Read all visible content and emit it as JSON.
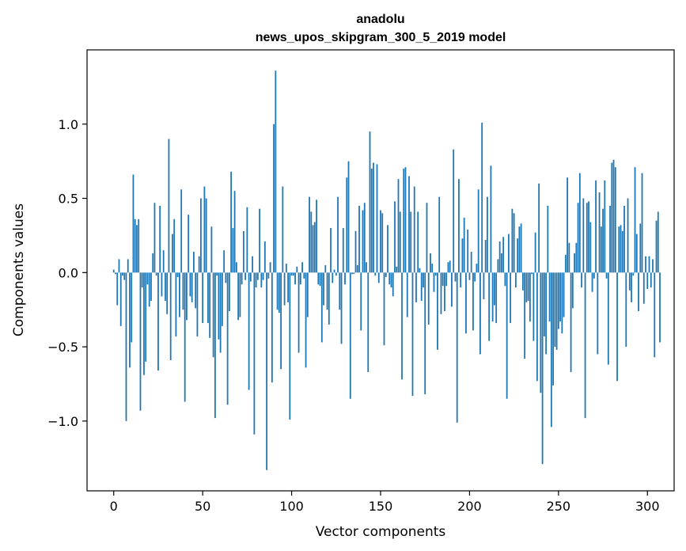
{
  "chart_data": {
    "type": "bar",
    "title_line1": "anadolu",
    "title_line2": "news_upos_skipgram_300_5_2019 model",
    "xlabel": "Vector components",
    "ylabel": "Components values",
    "xlim": [
      -15,
      315
    ],
    "ylim": [
      -1.47,
      1.5
    ],
    "xticks": [
      0,
      50,
      100,
      150,
      200,
      250,
      300
    ],
    "xtick_labels": [
      "0",
      "50",
      "100",
      "150",
      "200",
      "250",
      "300"
    ],
    "yticks": [
      -1.0,
      -0.5,
      0.0,
      0.5,
      1.0
    ],
    "ytick_labels": [
      "−1.0",
      "−0.5",
      "0.0",
      "0.5",
      "1.0"
    ],
    "bar_color": "#1f77b4",
    "grid": false,
    "values": [
      0.02,
      -0.01,
      -0.22,
      0.09,
      -0.36,
      -0.02,
      -0.05,
      -1.0,
      0.09,
      -0.64,
      -0.47,
      0.66,
      0.36,
      0.32,
      0.36,
      -0.93,
      -0.1,
      -0.69,
      -0.6,
      -0.08,
      -0.23,
      -0.19,
      0.13,
      0.47,
      -0.02,
      -0.66,
      0.45,
      -0.16,
      0.15,
      -0.19,
      -0.28,
      0.9,
      -0.59,
      0.26,
      0.36,
      -0.43,
      -0.03,
      -0.3,
      0.56,
      -0.25,
      -0.87,
      -0.32,
      0.39,
      -0.16,
      -0.2,
      0.14,
      -0.24,
      -0.43,
      0.11,
      0.5,
      -0.34,
      0.58,
      0.5,
      -0.34,
      -0.44,
      0.31,
      -0.57,
      -0.98,
      -0.02,
      -0.45,
      -0.54,
      -0.36,
      0.15,
      -0.07,
      -0.89,
      -0.26,
      0.68,
      0.3,
      0.55,
      0.07,
      -0.32,
      -0.3,
      -0.08,
      0.28,
      -0.05,
      0.44,
      -0.79,
      -0.06,
      0.11,
      -1.09,
      -0.1,
      -0.05,
      0.43,
      -0.1,
      -0.05,
      0.21,
      -1.33,
      -0.04,
      0.07,
      -0.74,
      1.0,
      1.36,
      -0.25,
      -0.27,
      -0.65,
      0.58,
      -0.22,
      0.06,
      -0.2,
      -0.99,
      -0.02,
      -0.02,
      -0.08,
      0.04,
      -0.54,
      -0.08,
      0.07,
      -0.04,
      -0.64,
      -0.3,
      0.51,
      0.41,
      0.32,
      0.34,
      0.49,
      -0.08,
      -0.09,
      -0.47,
      -0.22,
      0.05,
      -0.25,
      -0.35,
      0.3,
      -0.07,
      0.02,
      -0.02,
      0.51,
      -0.25,
      -0.48,
      0.3,
      -0.08,
      0.64,
      0.75,
      -0.85,
      -0.01,
      -0.01,
      0.28,
      0.05,
      0.45,
      -0.39,
      0.42,
      0.47,
      0.07,
      -0.67,
      0.95,
      0.7,
      0.74,
      -0.02,
      0.73,
      -0.07,
      0.42,
      0.4,
      -0.49,
      -0.03,
      0.32,
      -0.08,
      -0.1,
      -0.16,
      0.48,
      0.04,
      0.63,
      0.41,
      -0.72,
      0.7,
      0.71,
      -0.3,
      0.65,
      0.41,
      -0.83,
      0.58,
      -0.2,
      0.41,
      0.03,
      -0.19,
      -0.1,
      -0.82,
      0.47,
      -0.35,
      0.13,
      0.06,
      -0.13,
      -0.02,
      -0.52,
      0.51,
      -0.28,
      -0.09,
      -0.26,
      -0.09,
      0.07,
      0.08,
      -0.23,
      0.83,
      -0.06,
      -1.01,
      0.63,
      -0.1,
      0.23,
      0.37,
      -0.41,
      0.29,
      -0.05,
      0.14,
      -0.39,
      -0.06,
      0.06,
      0.56,
      -0.55,
      1.01,
      -0.18,
      0.22,
      0.51,
      -0.46,
      0.72,
      -0.33,
      -0.22,
      -0.34,
      0.09,
      0.21,
      0.13,
      0.24,
      -0.09,
      -0.85,
      0.26,
      -0.34,
      0.43,
      0.4,
      -0.1,
      0.23,
      0.31,
      0.33,
      -0.12,
      -0.58,
      -0.2,
      -0.19,
      -0.33,
      -0.01,
      -0.46,
      0.27,
      -0.73,
      0.6,
      -0.81,
      -1.29,
      -0.43,
      -0.55,
      0.45,
      -0.33,
      -1.04,
      -0.76,
      -0.5,
      -0.52,
      -0.38,
      -0.33,
      -0.41,
      -0.3,
      0.12,
      0.64,
      0.2,
      -0.67,
      -0.24,
      0.13,
      0.2,
      0.47,
      0.67,
      -0.1,
      0.5,
      -0.98,
      0.47,
      0.48,
      0.34,
      -0.13,
      -0.04,
      0.62,
      -0.55,
      0.54,
      0.31,
      0.43,
      0.62,
      -0.04,
      -0.62,
      0.45,
      0.74,
      0.76,
      0.71,
      -0.73,
      0.31,
      0.32,
      0.28,
      0.45,
      -0.5,
      0.5,
      -0.12,
      -0.2,
      -0.02,
      0.71,
      0.26,
      -0.26,
      0.33,
      0.67,
      -0.21,
      0.11,
      -0.11,
      0.11,
      -0.1,
      0.09,
      -0.57,
      0.35,
      0.41,
      -0.47
    ]
  }
}
